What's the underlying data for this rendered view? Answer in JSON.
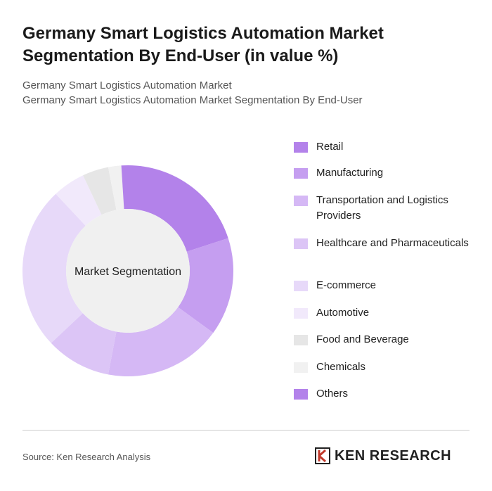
{
  "chart_data": {
    "type": "donut",
    "title": "Germany Smart Logistics Automation Market Segmentation By End-User (in value %)",
    "subtitle": [
      "Germany Smart Logistics Automation Market",
      "Germany Smart Logistics Automation Market Segmentation By End-User"
    ],
    "center_label": "Market Segmentation",
    "categories": [
      "Retail",
      "Manufacturing",
      "Transportation and Logistics Providers",
      "Healthcare and Pharmaceuticals",
      "E-commerce",
      "Automotive",
      "Food and Beverage",
      "Chemicals",
      "Others"
    ],
    "values": [
      20,
      15,
      18,
      10,
      25,
      5,
      4,
      2,
      1
    ],
    "colors": [
      "#b382ea",
      "#c59ef0",
      "#d5b8f5",
      "#dcc5f6",
      "#e7d9f9",
      "#f1e9fb",
      "#e6e6e6",
      "#f1f1f1",
      "#b382ea"
    ],
    "source": "Source: Ken Research Analysis",
    "logo": "KEN RESEARCH"
  }
}
